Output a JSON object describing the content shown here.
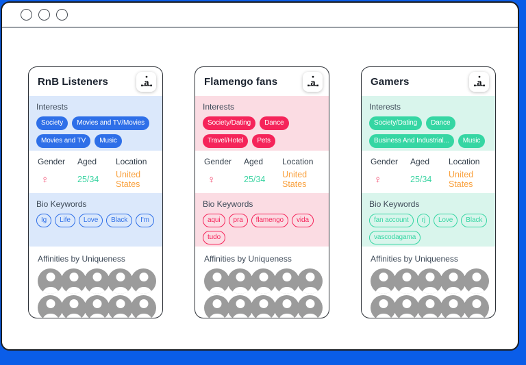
{
  "browser_window": {
    "window_controls": [
      "window-control-1",
      "window-control-2",
      "window-control-3"
    ]
  },
  "labels": {
    "interests": "Interests",
    "gender": "Gender",
    "aged": "Aged",
    "location": "Location",
    "bio_keywords": "Bio Keywords",
    "affinities": "Affinities by Uniqueness"
  },
  "value_colors": {
    "gender": "#f23e66",
    "aged": "#3bd4a2",
    "location": "#f9a03c"
  },
  "segments": [
    {
      "title": "RnB Listeners",
      "accent": "#2e6fe8",
      "tint": "#dbe8fb",
      "logo_icon": "audiense-logo",
      "interests": [
        "Society",
        "Movies and TV/Movies",
        "Movies and TV",
        "Music"
      ],
      "demographics": {
        "gender_symbol": "♀",
        "aged": "25/34",
        "location": "United States"
      },
      "bio_keywords": [
        "Ig",
        "Life",
        "Love",
        "Black",
        "I'm"
      ],
      "affinity_avatar_count": 10
    },
    {
      "title": "Flamengo fans",
      "accent": "#f5245a",
      "tint": "#fbdce3",
      "logo_icon": "audiense-logo",
      "interests": [
        "Society/Dating",
        "Dance",
        "Travel/Hotel",
        "Pets"
      ],
      "demographics": {
        "gender_symbol": "♀",
        "aged": "25/34",
        "location": "United States"
      },
      "bio_keywords": [
        "aqui",
        "pra",
        "flamengo",
        "vida",
        "tudo"
      ],
      "affinity_avatar_count": 10
    },
    {
      "title": "Gamers",
      "accent": "#35d6a3",
      "tint": "#d9f5ec",
      "logo_icon": "audiense-logo",
      "interests": [
        "Society/Dating",
        "Dance",
        "Business And Industrial...",
        "Music"
      ],
      "demographics": {
        "gender_symbol": "♀",
        "aged": "25/34",
        "location": "United States"
      },
      "bio_keywords": [
        "fan account",
        "rj",
        "Love",
        "Black",
        "vascodagama"
      ],
      "affinity_avatar_count": 10
    }
  ]
}
